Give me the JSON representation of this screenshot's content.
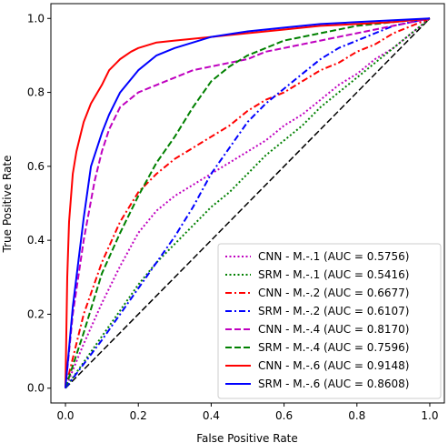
{
  "chart_data": {
    "type": "line",
    "title": "",
    "xlabel": "False Positive Rate",
    "ylabel": "True Positive Rate",
    "xlim": [
      -0.04,
      1.04
    ],
    "ylim": [
      -0.04,
      1.04
    ],
    "xticks": [
      "0.0",
      "0.2",
      "0.4",
      "0.6",
      "0.8",
      "1.0"
    ],
    "yticks": [
      "0.0",
      "0.2",
      "0.4",
      "0.6",
      "0.8",
      "1.0"
    ],
    "grid": false,
    "legend_position": "lower-right",
    "reference_line": {
      "x": [
        0,
        1
      ],
      "y": [
        0,
        1
      ],
      "color": "#000000",
      "style": "dashed"
    },
    "series": [
      {
        "name": "CNN - M.-.1 (AUC = 0.5756)",
        "color": "#bf00bf",
        "style": "dotted",
        "x": [
          0,
          0.05,
          0.1,
          0.15,
          0.2,
          0.25,
          0.3,
          0.35,
          0.4,
          0.45,
          0.5,
          0.55,
          0.6,
          0.65,
          0.7,
          0.75,
          0.8,
          0.85,
          0.9,
          0.95,
          1.0
        ],
        "y": [
          0,
          0.12,
          0.23,
          0.33,
          0.42,
          0.48,
          0.52,
          0.55,
          0.58,
          0.61,
          0.64,
          0.67,
          0.71,
          0.74,
          0.78,
          0.82,
          0.85,
          0.89,
          0.92,
          0.96,
          1.0
        ]
      },
      {
        "name": "SRM - M.-.1 (AUC = 0.5416)",
        "color": "#008000",
        "style": "dotted",
        "x": [
          0,
          0.05,
          0.1,
          0.15,
          0.2,
          0.25,
          0.3,
          0.35,
          0.4,
          0.45,
          0.5,
          0.55,
          0.6,
          0.65,
          0.7,
          0.75,
          0.8,
          0.85,
          0.9,
          0.95,
          1.0
        ],
        "y": [
          0,
          0.07,
          0.14,
          0.21,
          0.28,
          0.34,
          0.39,
          0.44,
          0.49,
          0.53,
          0.58,
          0.63,
          0.67,
          0.71,
          0.76,
          0.8,
          0.84,
          0.88,
          0.92,
          0.96,
          1.0
        ]
      },
      {
        "name": "CNN - M.-.2 (AUC = 0.6677)",
        "color": "#ff0000",
        "style": "dashdot",
        "x": [
          0,
          0.05,
          0.1,
          0.15,
          0.2,
          0.25,
          0.3,
          0.35,
          0.4,
          0.45,
          0.5,
          0.55,
          0.6,
          0.65,
          0.7,
          0.75,
          0.8,
          0.85,
          0.9,
          0.95,
          1.0
        ],
        "y": [
          0,
          0.2,
          0.34,
          0.45,
          0.53,
          0.58,
          0.62,
          0.65,
          0.68,
          0.71,
          0.75,
          0.78,
          0.8,
          0.83,
          0.86,
          0.88,
          0.91,
          0.93,
          0.96,
          0.98,
          1.0
        ]
      },
      {
        "name": "SRM - M.-.2 (AUC = 0.6107)",
        "color": "#0000ff",
        "style": "dashdot",
        "x": [
          0,
          0.1,
          0.15,
          0.2,
          0.25,
          0.3,
          0.35,
          0.4,
          0.45,
          0.5,
          0.55,
          0.6,
          0.65,
          0.7,
          0.75,
          0.8,
          0.85,
          0.9,
          0.95,
          1.0
        ],
        "y": [
          0,
          0.13,
          0.2,
          0.27,
          0.34,
          0.41,
          0.49,
          0.58,
          0.65,
          0.72,
          0.77,
          0.81,
          0.85,
          0.89,
          0.92,
          0.94,
          0.96,
          0.98,
          0.99,
          1.0
        ]
      },
      {
        "name": "CNN - M.-.4 (AUC = 0.8170)",
        "color": "#bf00bf",
        "style": "dashed",
        "x": [
          0,
          0.02,
          0.05,
          0.08,
          0.1,
          0.12,
          0.15,
          0.2,
          0.25,
          0.3,
          0.35,
          0.4,
          0.45,
          0.5,
          0.55,
          0.6,
          0.65,
          0.7,
          0.8,
          0.9,
          1.0
        ],
        "y": [
          0,
          0.2,
          0.4,
          0.56,
          0.64,
          0.7,
          0.76,
          0.8,
          0.82,
          0.84,
          0.86,
          0.87,
          0.88,
          0.89,
          0.91,
          0.92,
          0.93,
          0.94,
          0.96,
          0.98,
          1.0
        ]
      },
      {
        "name": "SRM - M.-.4 (AUC = 0.7596)",
        "color": "#008000",
        "style": "dashed",
        "x": [
          0,
          0.05,
          0.1,
          0.15,
          0.2,
          0.25,
          0.3,
          0.35,
          0.4,
          0.45,
          0.5,
          0.55,
          0.6,
          0.65,
          0.7,
          0.8,
          0.9,
          1.0
        ],
        "y": [
          0,
          0.15,
          0.31,
          0.42,
          0.52,
          0.61,
          0.68,
          0.76,
          0.83,
          0.87,
          0.9,
          0.92,
          0.94,
          0.95,
          0.96,
          0.98,
          0.99,
          1.0
        ]
      },
      {
        "name": "CNN - M.-.6 (AUC = 0.9148)",
        "color": "#ff0000",
        "style": "solid",
        "x": [
          0,
          0.005,
          0.01,
          0.02,
          0.03,
          0.04,
          0.05,
          0.07,
          0.1,
          0.12,
          0.15,
          0.18,
          0.2,
          0.25,
          0.3,
          0.4,
          0.5,
          0.6,
          0.7,
          0.8,
          0.9,
          1.0
        ],
        "y": [
          0,
          0.3,
          0.45,
          0.58,
          0.64,
          0.68,
          0.72,
          0.77,
          0.82,
          0.86,
          0.89,
          0.91,
          0.92,
          0.935,
          0.94,
          0.95,
          0.96,
          0.97,
          0.98,
          0.985,
          0.99,
          1.0
        ]
      },
      {
        "name": "SRM - M.-.6 (AUC = 0.8608)",
        "color": "#0000ff",
        "style": "solid",
        "x": [
          0,
          0.02,
          0.05,
          0.07,
          0.1,
          0.12,
          0.15,
          0.2,
          0.25,
          0.3,
          0.35,
          0.4,
          0.5,
          0.6,
          0.7,
          0.8,
          0.9,
          1.0
        ],
        "y": [
          0,
          0.22,
          0.46,
          0.6,
          0.69,
          0.74,
          0.8,
          0.86,
          0.9,
          0.92,
          0.935,
          0.95,
          0.965,
          0.975,
          0.985,
          0.99,
          0.995,
          1.0
        ]
      }
    ]
  }
}
